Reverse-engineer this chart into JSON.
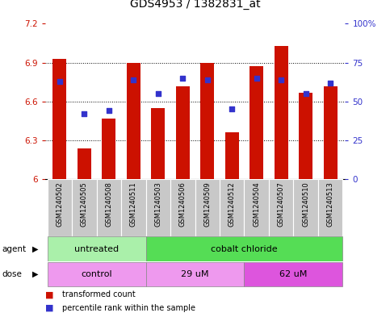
{
  "title": "GDS4953 / 1382831_at",
  "samples": [
    "GSM1240502",
    "GSM1240505",
    "GSM1240508",
    "GSM1240511",
    "GSM1240503",
    "GSM1240506",
    "GSM1240509",
    "GSM1240512",
    "GSM1240504",
    "GSM1240507",
    "GSM1240510",
    "GSM1240513"
  ],
  "bar_values": [
    6.93,
    6.24,
    6.47,
    6.9,
    6.55,
    6.72,
    6.9,
    6.36,
    6.87,
    7.03,
    6.67,
    6.72
  ],
  "percentile_values": [
    63,
    42,
    44,
    64,
    55,
    65,
    64,
    45,
    65,
    64,
    55,
    62
  ],
  "bar_color": "#cc1100",
  "dot_color": "#3333cc",
  "ylim_left": [
    6.0,
    7.2
  ],
  "ylim_right": [
    0,
    100
  ],
  "yticks_left": [
    6.0,
    6.3,
    6.6,
    6.9,
    7.2
  ],
  "yticks_right": [
    0,
    25,
    50,
    75,
    100
  ],
  "ytick_labels_left": [
    "6",
    "6.3",
    "6.6",
    "6.9",
    "7.2"
  ],
  "ytick_labels_right": [
    "0",
    "25",
    "50",
    "75",
    "100%"
  ],
  "grid_lines": [
    6.3,
    6.6,
    6.9
  ],
  "agent_groups": [
    {
      "label": "untreated",
      "start": 0,
      "end": 4,
      "color": "#aaf0aa"
    },
    {
      "label": "cobalt chloride",
      "start": 4,
      "end": 12,
      "color": "#55dd55"
    }
  ],
  "dose_groups": [
    {
      "label": "control",
      "start": 0,
      "end": 4,
      "color": "#ee99ee"
    },
    {
      "label": "29 uM",
      "start": 4,
      "end": 8,
      "color": "#ee99ee"
    },
    {
      "label": "62 uM",
      "start": 8,
      "end": 12,
      "color": "#dd55dd"
    }
  ],
  "legend_items": [
    {
      "label": "transformed count",
      "color": "#cc1100"
    },
    {
      "label": "percentile rank within the sample",
      "color": "#3333cc"
    }
  ],
  "bar_width": 0.55,
  "title_fontsize": 10,
  "tick_fontsize": 7.5,
  "sample_fontsize": 6.0,
  "group_fontsize": 8.0
}
